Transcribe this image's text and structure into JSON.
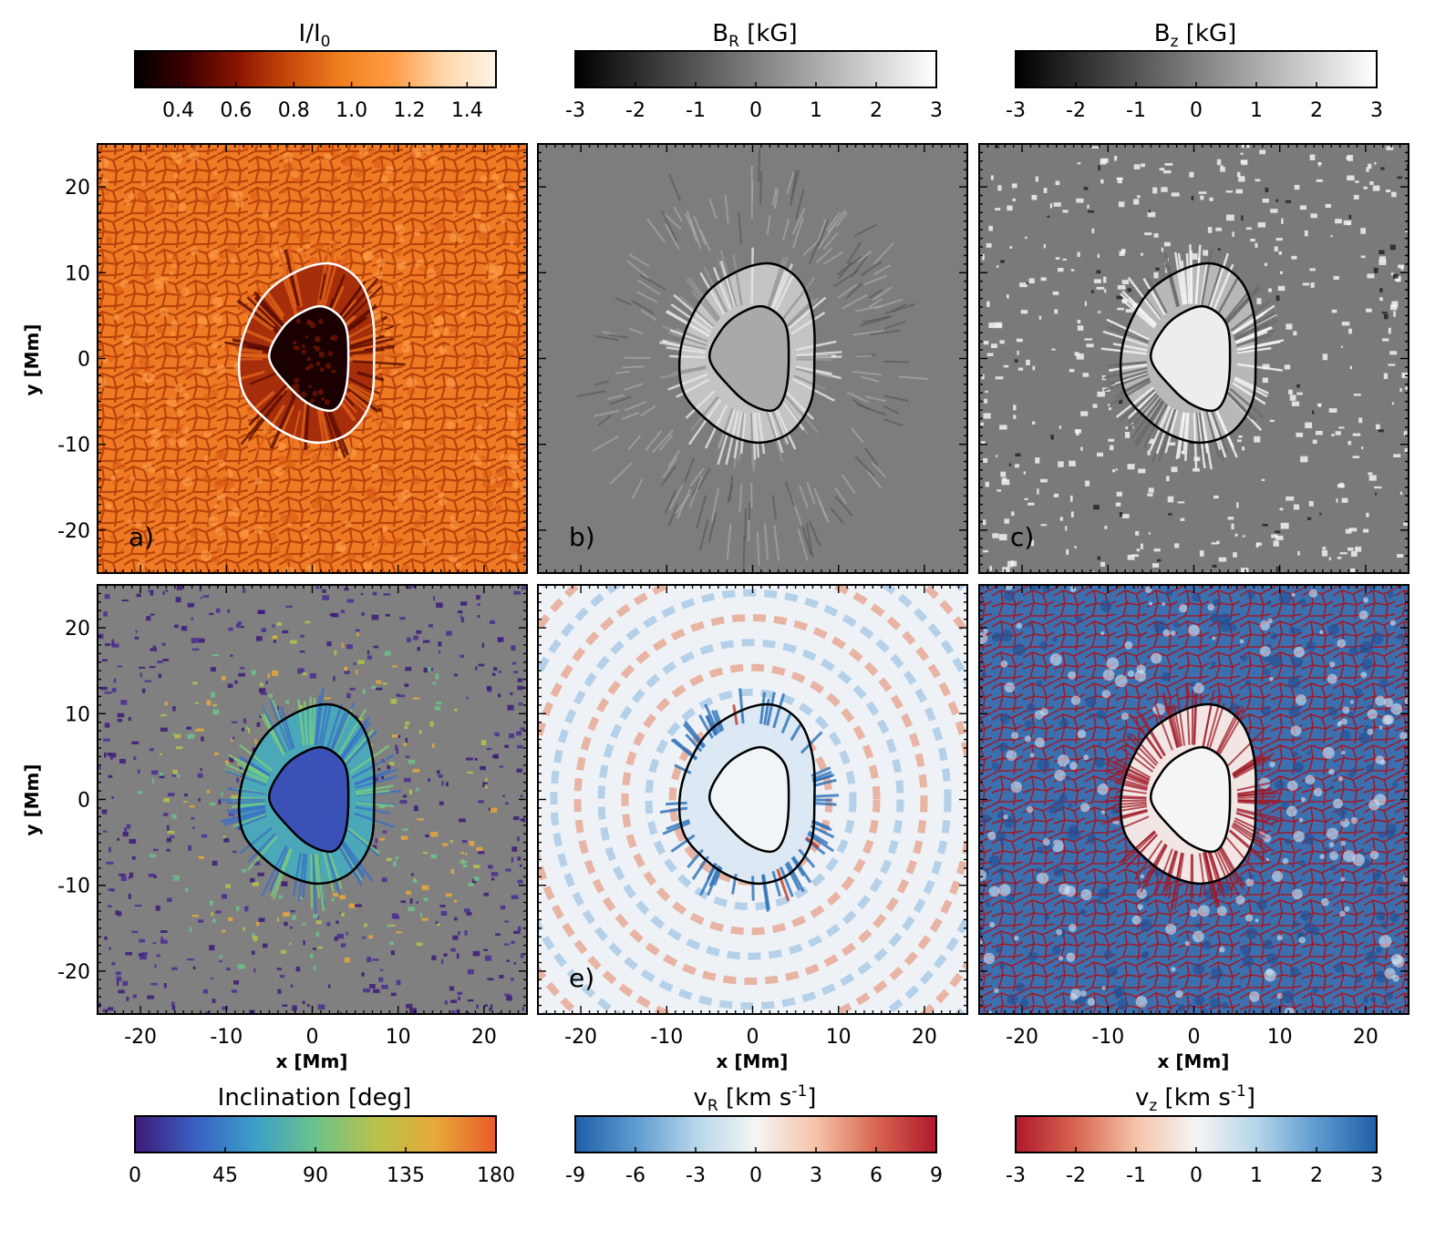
{
  "chart_data": [
    {
      "type": "heatmap",
      "panel_label": "a)",
      "colorbar": {
        "title_main": "I/I",
        "title_sub": "0",
        "ticks": [
          "0.4",
          "0.6",
          "0.8",
          "1.0",
          "1.2",
          "1.4"
        ],
        "tick_values": [
          0.4,
          0.6,
          0.8,
          1.0,
          1.2,
          1.4
        ],
        "range": [
          0.25,
          1.5
        ],
        "colors": [
          "#000000",
          "#3d0000",
          "#8b1500",
          "#c94a0a",
          "#f08020",
          "#ff9c45",
          "#ffd8ad",
          "#fff4e6"
        ]
      },
      "xlim": [
        -25,
        25
      ],
      "ylim": [
        -25,
        25
      ],
      "xticks": [
        "-20",
        "-10",
        "0",
        "10",
        "20"
      ],
      "yticks": [
        "20",
        "10",
        "0",
        "-10",
        "-20"
      ],
      "xlabel": "",
      "ylabel": "y [Mm]",
      "contour_color": "#ffffff"
    },
    {
      "type": "heatmap",
      "panel_label": "b)",
      "colorbar": {
        "title_main": "B",
        "title_sub": "R",
        "title_tail": " [kG]",
        "ticks": [
          "-3",
          "-2",
          "-1",
          "0",
          "1",
          "2",
          "3"
        ],
        "tick_values": [
          -3,
          -2,
          -1,
          0,
          1,
          2,
          3
        ],
        "range": [
          -3,
          3
        ],
        "colors": [
          "#000000",
          "#ffffff"
        ]
      },
      "xlim": [
        -25,
        25
      ],
      "ylim": [
        -25,
        25
      ],
      "xticks": [
        "-20",
        "-10",
        "0",
        "10",
        "20"
      ],
      "yticks": [
        "20",
        "10",
        "0",
        "-10",
        "-20"
      ],
      "xlabel": "",
      "ylabel": "",
      "contour_color": "#000000"
    },
    {
      "type": "heatmap",
      "panel_label": "c)",
      "colorbar": {
        "title_main": "B",
        "title_sub": "z",
        "title_tail": " [kG]",
        "ticks": [
          "-3",
          "-2",
          "-1",
          "0",
          "1",
          "2",
          "3"
        ],
        "tick_values": [
          -3,
          -2,
          -1,
          0,
          1,
          2,
          3
        ],
        "range": [
          -3,
          3
        ],
        "colors": [
          "#000000",
          "#ffffff"
        ]
      },
      "xlim": [
        -25,
        25
      ],
      "ylim": [
        -25,
        25
      ],
      "xticks": [
        "-20",
        "-10",
        "0",
        "10",
        "20"
      ],
      "yticks": [
        "20",
        "10",
        "0",
        "-10",
        "-20"
      ],
      "xlabel": "",
      "ylabel": "",
      "contour_color": "#000000"
    },
    {
      "type": "heatmap",
      "panel_label": "",
      "colorbar": {
        "title_main": "Inclination [deg]",
        "ticks": [
          "0",
          "45",
          "90",
          "135",
          "180"
        ],
        "tick_values": [
          0,
          45,
          90,
          135,
          180
        ],
        "range": [
          0,
          180
        ],
        "colors": [
          "#3d1a78",
          "#3a5fc2",
          "#3aa0c8",
          "#6cc28a",
          "#b7c24a",
          "#e8a83a",
          "#ea5a2a"
        ]
      },
      "xlim": [
        -25,
        25
      ],
      "ylim": [
        -25,
        25
      ],
      "xticks": [
        "-20",
        "-10",
        "0",
        "10",
        "20"
      ],
      "yticks": [
        "20",
        "10",
        "0",
        "-10",
        "-20"
      ],
      "xlabel": "x [Mm]",
      "ylabel": "y [Mm]",
      "contour_color": "#000000"
    },
    {
      "type": "heatmap",
      "panel_label": "e)",
      "colorbar": {
        "title_main": "v",
        "title_sub": "R",
        "title_tail": " [km s",
        "title_sup": "-1",
        "title_end": "]",
        "ticks": [
          "-9",
          "-6",
          "-3",
          "0",
          "3",
          "6",
          "9"
        ],
        "tick_values": [
          -9,
          -6,
          -3,
          0,
          3,
          6,
          9
        ],
        "range": [
          -9,
          9
        ],
        "colors": [
          "#1f5fa8",
          "#5e9bd0",
          "#b6d5ea",
          "#f5f5f5",
          "#f5c3a8",
          "#d86650",
          "#b0182c"
        ]
      },
      "xlim": [
        -25,
        25
      ],
      "ylim": [
        -25,
        25
      ],
      "xticks": [
        "-20",
        "-10",
        "0",
        "10",
        "20"
      ],
      "yticks": [
        "20",
        "10",
        "0",
        "-10",
        "-20"
      ],
      "xlabel": "x [Mm]",
      "ylabel": "",
      "contour_color": "#000000"
    },
    {
      "type": "heatmap",
      "panel_label": "",
      "colorbar": {
        "title_main": "v",
        "title_sub": "z",
        "title_tail": " [km s",
        "title_sup": "-1",
        "title_end": "]",
        "ticks": [
          "-3",
          "-2",
          "-1",
          "0",
          "1",
          "2",
          "3"
        ],
        "tick_values": [
          -3,
          -2,
          -1,
          0,
          1,
          2,
          3
        ],
        "range": [
          -3,
          3
        ],
        "colors": [
          "#b0182c",
          "#d86650",
          "#f5c3a8",
          "#f5f5f5",
          "#b6d5ea",
          "#5e9bd0",
          "#1f5fa8"
        ]
      },
      "xlim": [
        -25,
        25
      ],
      "ylim": [
        -25,
        25
      ],
      "xticks": [
        "-20",
        "-10",
        "0",
        "10",
        "20"
      ],
      "yticks": [
        "20",
        "10",
        "0",
        "-10",
        "-20"
      ],
      "xlabel": "x [Mm]",
      "ylabel": "",
      "contour_color": "#000000"
    }
  ],
  "contours": {
    "outer": [
      [
        -8.5,
        0
      ],
      [
        -7.5,
        4
      ],
      [
        -5,
        8
      ],
      [
        -1,
        10.5
      ],
      [
        2.5,
        11
      ],
      [
        5.5,
        9
      ],
      [
        7,
        5
      ],
      [
        7.2,
        0
      ],
      [
        6.8,
        -5
      ],
      [
        4.5,
        -8.5
      ],
      [
        1,
        -9.8
      ],
      [
        -2.5,
        -9
      ],
      [
        -5.5,
        -7
      ],
      [
        -8,
        -4
      ]
    ],
    "inner": [
      [
        -5,
        0
      ],
      [
        -3.5,
        3.5
      ],
      [
        -1,
        5.5
      ],
      [
        1.5,
        6
      ],
      [
        3.8,
        4
      ],
      [
        4.2,
        0
      ],
      [
        3.8,
        -4
      ],
      [
        2.5,
        -6
      ],
      [
        0,
        -5.5
      ],
      [
        -2.5,
        -3.5
      ]
    ]
  }
}
